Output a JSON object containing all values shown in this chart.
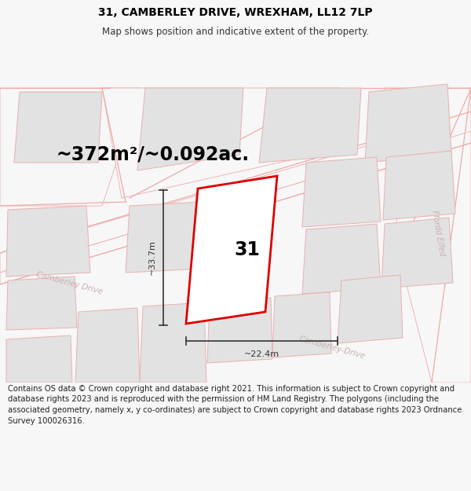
{
  "title": "31, CAMBERLEY DRIVE, WREXHAM, LL12 7LP",
  "subtitle": "Map shows position and indicative extent of the property.",
  "area_text": "~372m²/~0.092ac.",
  "width_label": "~22.4m",
  "height_label": "~33.7m",
  "number_label": "31",
  "footer": "Contains OS data © Crown copyright and database right 2021. This information is subject to Crown copyright and database rights 2023 and is reproduced with the permission of HM Land Registry. The polygons (including the associated geometry, namely x, y co-ordinates) are subject to Crown copyright and database rights 2023 Ordnance Survey 100026316.",
  "bg_color": "#f7f7f7",
  "map_bg": "#ffffff",
  "plot_edge_color": "#dd0000",
  "building_fill": "#e2e2e2",
  "building_edge": "#e8b0b0",
  "road_fill": "#f7f7f7",
  "road_edge": "#f0aaaa",
  "title_fontsize": 10,
  "subtitle_fontsize": 8.5,
  "area_fontsize": 17,
  "dim_fontsize": 8,
  "number_fontsize": 17,
  "footer_fontsize": 7.2,
  "road_label_fontsize": 7.5,
  "road_label_color": "#c8b0b0"
}
